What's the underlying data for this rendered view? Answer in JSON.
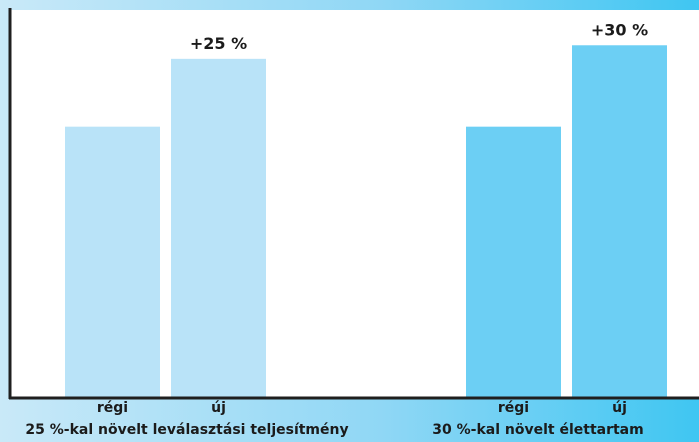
{
  "chart_data": {
    "type": "bar",
    "groups": [
      {
        "label": "25 %-kal növelt leválasztási teljesítmény",
        "color": "#b9e3f8",
        "bars": [
          {
            "category": "régi",
            "value": 100,
            "annotation": ""
          },
          {
            "category": "új",
            "value": 125,
            "annotation": "+25 %"
          }
        ]
      },
      {
        "label": "30 %-kal növelt élettartam",
        "color": "#6ccff4",
        "bars": [
          {
            "category": "régi",
            "value": 100,
            "annotation": ""
          },
          {
            "category": "új",
            "value": 130,
            "annotation": "+30 %"
          }
        ]
      }
    ],
    "ylim": [
      0,
      143
    ],
    "grid": false,
    "axis_color": "#1f1f1f",
    "plot_background": "#ffffff"
  }
}
